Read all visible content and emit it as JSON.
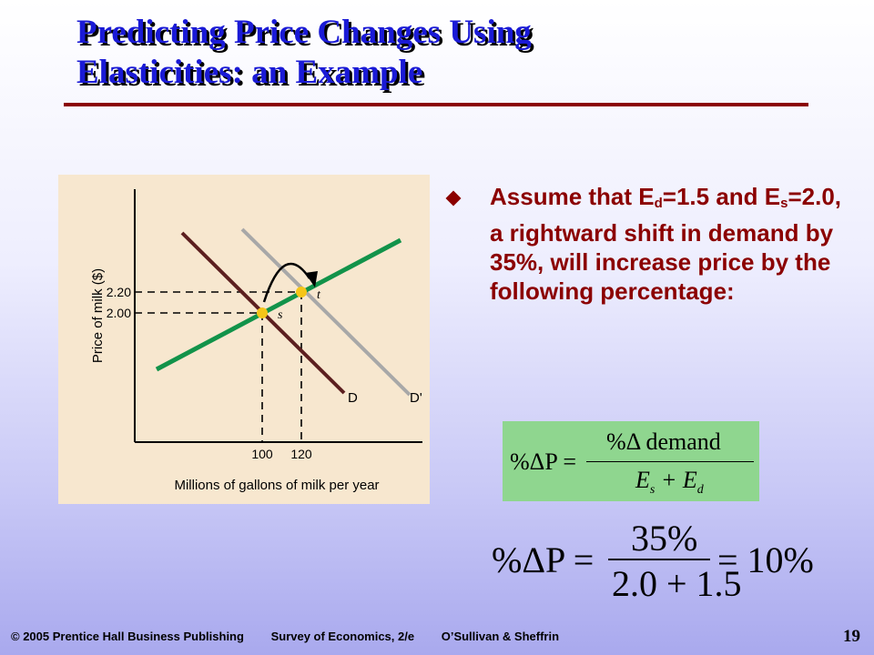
{
  "slide": {
    "title_line1": "Predicting Price Changes Using",
    "title_line2": "Elasticities:  an Example",
    "page_number": "19"
  },
  "bullet": {
    "parts": [
      "Assume that E",
      "d",
      "=1.5 and E",
      "s",
      "=2.0, a rightward shift in demand by 35%, will increase price by the following percentage:"
    ]
  },
  "graph": {
    "y_axis_label": "Price of milk ($)",
    "x_axis_label": "Millions of gallons of milk per year",
    "y_ticks": [
      "2.20",
      "2.00"
    ],
    "x_ticks": [
      "100",
      "120"
    ],
    "point_labels": [
      "s",
      "t"
    ],
    "curve_labels": [
      "D",
      "D'"
    ],
    "colors": {
      "panel": "#f7e7cf",
      "supply": "#12934a",
      "demand": "#5c1f1f",
      "demand_shifted": "#a8a8a8",
      "points": "#f5c518"
    }
  },
  "formula": {
    "lhs": "%ΔP =",
    "numerator": "%Δ demand",
    "denominator_e1": "E",
    "denominator_s1": "s",
    "denominator_mid": " + E",
    "denominator_s2": "d"
  },
  "example": {
    "lhs": "%ΔP =",
    "numerator": "35%",
    "denominator": "2.0 + 1.5",
    "rhs": "= 10%"
  },
  "footer": {
    "publisher": "© 2005 Prentice Hall Business Publishing",
    "book": "Survey of Economics, 2/e",
    "authors": "O’Sullivan & Sheffrin"
  }
}
